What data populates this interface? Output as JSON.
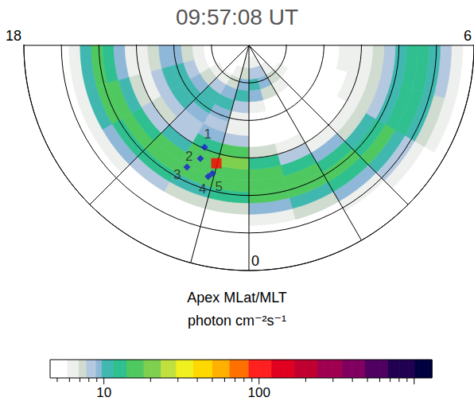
{
  "chart_data": {
    "type": "polar_heatmap",
    "title": "09:57:08 UT",
    "coordinates_label": "Apex MLat/MLT",
    "units": "photon cm⁻²s⁻¹",
    "grid": true,
    "log": true,
    "mlat_lim": [
      30,
      90
    ],
    "mlat_ticks": [
      30,
      40,
      50,
      60,
      70,
      80,
      90
    ],
    "mlt_lim": [
      0,
      24
    ],
    "mlt_ticks": [
      18,
      0,
      6
    ],
    "mlt_lines": [
      21,
      23,
      2,
      3
    ],
    "mlt_edges": [
      18,
      19,
      20,
      21,
      22,
      23,
      0,
      1,
      2,
      3,
      4,
      5,
      6
    ],
    "mlat_edges": [
      33,
      36,
      39,
      42,
      45,
      48,
      51,
      54,
      57,
      60,
      63,
      66,
      69,
      72,
      75,
      78,
      81,
      84,
      87,
      90
    ],
    "cells": [
      [
        4,
        4,
        5,
        6,
        11,
        14,
        13,
        9,
        6,
        6,
        7,
        9,
        9,
        7,
        6,
        5,
        5,
        5,
        5
      ],
      [
        4,
        4,
        5,
        6,
        10,
        14,
        14,
        10,
        7,
        6,
        8,
        10,
        10,
        8,
        6,
        5,
        5,
        5,
        5
      ],
      [
        4,
        4,
        4,
        6,
        9,
        13,
        15,
        12,
        8,
        7,
        8,
        10,
        11,
        9,
        7,
        6,
        5,
        5,
        5
      ],
      [
        4,
        4,
        4,
        5,
        8,
        12,
        15,
        14,
        10,
        8,
        8,
        9,
        11,
        10,
        8,
        6,
        5,
        5,
        5
      ],
      [
        4,
        4,
        4,
        5,
        7,
        11,
        15,
        16,
        14,
        12,
        9,
        8,
        9,
        10,
        9,
        7,
        6,
        5,
        5
      ],
      [
        4,
        4,
        4,
        5,
        7,
        12,
        17,
        18,
        20,
        14,
        8,
        6,
        6,
        8,
        10,
        9,
        7,
        6,
        5
      ],
      [
        4,
        4,
        5,
        6,
        9,
        15,
        18,
        17,
        12,
        7,
        5,
        5,
        5,
        6,
        9,
        10,
        8,
        6,
        5
      ],
      [
        4,
        4,
        5,
        7,
        11,
        16,
        16,
        13,
        8,
        6,
        5,
        5,
        5,
        5,
        7,
        9,
        8,
        6,
        5
      ],
      [
        4,
        5,
        6,
        9,
        13,
        15,
        13,
        9,
        6,
        5,
        5,
        5,
        5,
        5,
        6,
        7,
        6,
        5,
        5
      ],
      [
        5,
        6,
        8,
        11,
        14,
        13,
        10,
        7,
        6,
        5,
        5,
        4,
        4,
        5,
        5,
        6,
        5,
        5,
        5
      ],
      [
        6,
        7,
        10,
        13,
        13,
        11,
        8,
        7,
        6,
        6,
        5,
        5,
        5,
        5,
        5,
        5,
        5,
        5,
        5
      ],
      [
        6,
        8,
        11,
        13,
        12,
        10,
        8,
        7,
        6,
        6,
        6,
        5,
        5,
        5,
        5,
        5,
        5,
        5,
        5
      ]
    ],
    "color_range": [
      4.5,
      1300
    ],
    "color_ticks": [
      10,
      100
    ],
    "footprint": {
      "color": "#ff0000",
      "marker": "square",
      "mlat": 57.4,
      "mlt": 22.97
    },
    "markers": {
      "color": "#1a1ad6",
      "marker": "diamond",
      "points": [
        {
          "label": "1",
          "mlat": 60.4,
          "mlt": 22.43
        },
        {
          "label": "2",
          "mlat": 57.2,
          "mlt": 22.45
        },
        {
          "label": "3",
          "mlat": 53.6,
          "mlt": 22.2
        },
        {
          "label": "4",
          "mlat": 53.4,
          "mlt": 22.85
        },
        {
          "label": "5",
          "mlat": 54.5,
          "mlt": 22.94
        }
      ]
    }
  }
}
